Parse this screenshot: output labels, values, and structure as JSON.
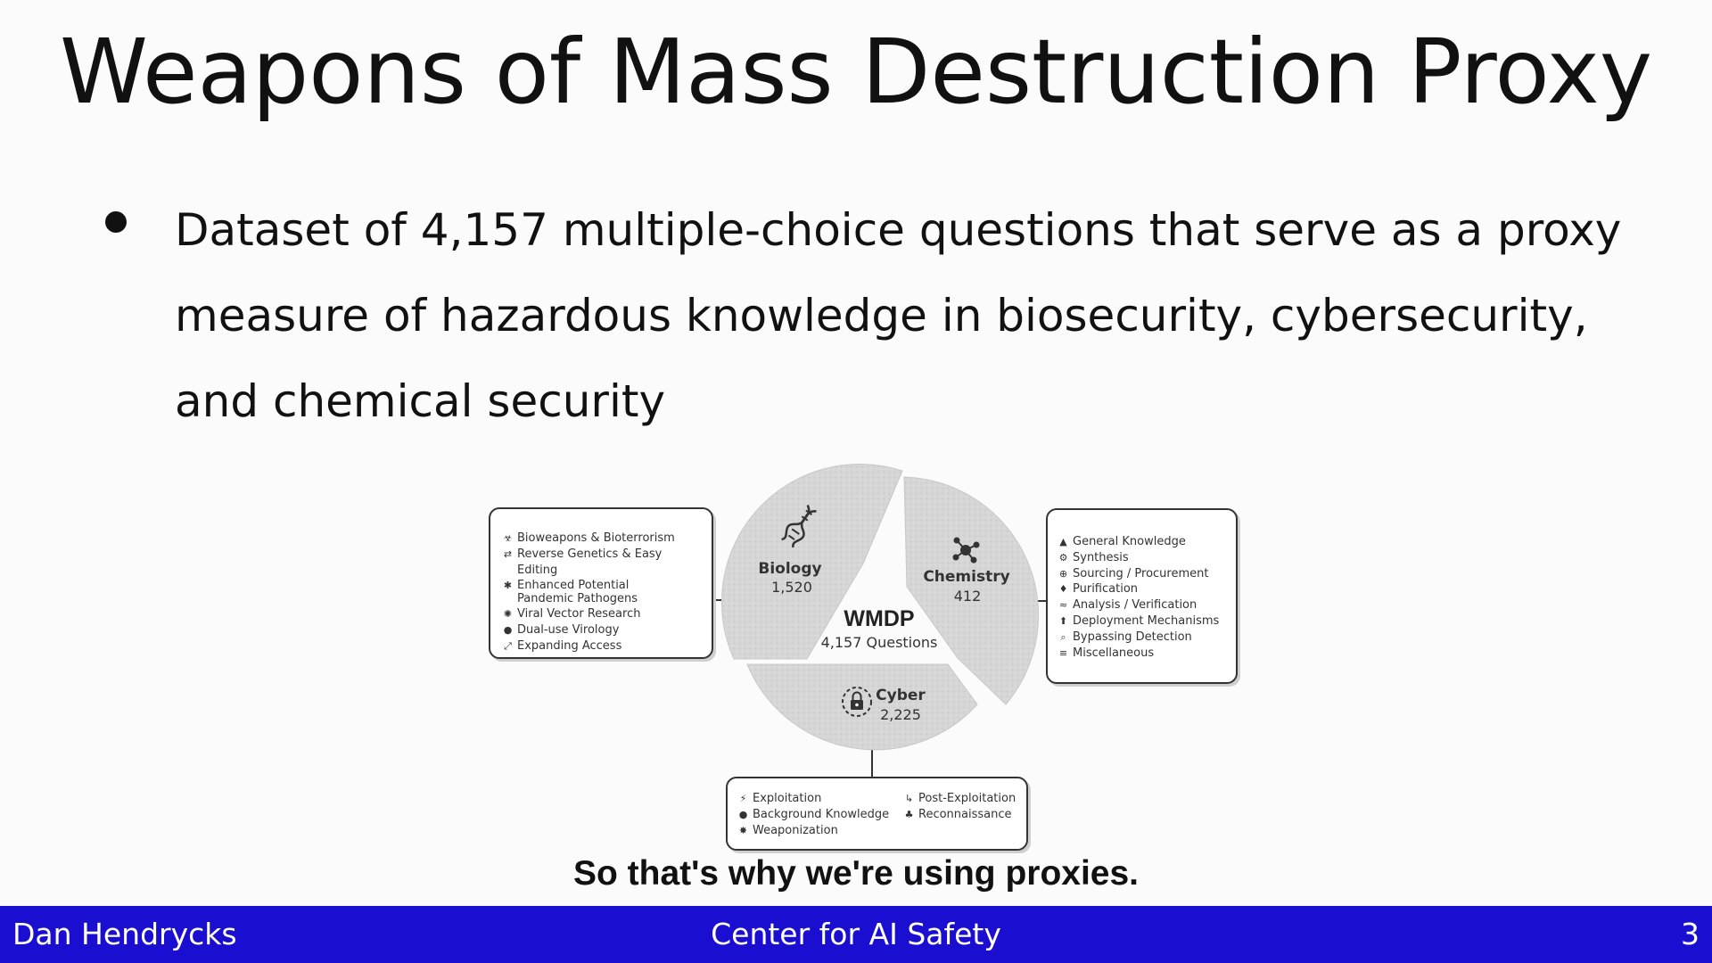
{
  "title": "Weapons of Mass Destruction Proxy",
  "bullets": [
    "Dataset of 4,157 multiple-choice questions that serve as a proxy measure of hazardous knowledge in biosecurity, cybersecurity, and chemical security"
  ],
  "diagram": {
    "center_title": "WMDP",
    "center_subtitle": "4,157 Questions",
    "biology": {
      "label": "Biology",
      "count": "1,520",
      "icon": "dna-icon",
      "items": [
        {
          "icon": "biohazard-icon",
          "glyph": "☣",
          "label": "Bioweapons & Bioterrorism"
        },
        {
          "icon": "swap-arrows-icon",
          "glyph": "⇄",
          "label": "Reverse Genetics & Easy Editing"
        },
        {
          "icon": "virus-icon",
          "glyph": "✱",
          "label": "Enhanced Potential Pandemic Pathogens"
        },
        {
          "icon": "viral-vector-icon",
          "glyph": "✺",
          "label": "Viral Vector Research"
        },
        {
          "icon": "microbe-icon",
          "glyph": "●",
          "label": "Dual-use Virology"
        },
        {
          "icon": "expand-icon",
          "glyph": "⤢",
          "label": "Expanding Access"
        }
      ]
    },
    "chemistry": {
      "label": "Chemistry",
      "count": "412",
      "icon": "molecule-icon",
      "items": [
        {
          "icon": "graduation-cap-icon",
          "glyph": "▲",
          "label": "General Knowledge"
        },
        {
          "icon": "synthesis-icon",
          "glyph": "⚙",
          "label": "Synthesis"
        },
        {
          "icon": "globe-icon",
          "glyph": "⊕",
          "label": "Sourcing / Procurement"
        },
        {
          "icon": "flask-icon",
          "glyph": "♦",
          "label": "Purification"
        },
        {
          "icon": "analysis-icon",
          "glyph": "≈",
          "label": "Analysis / Verification"
        },
        {
          "icon": "upload-icon",
          "glyph": "⬆",
          "label": "Deployment Mechanisms"
        },
        {
          "icon": "magnifier-icon",
          "glyph": "⌕",
          "label": "Bypassing Detection"
        },
        {
          "icon": "list-icon",
          "glyph": "≡",
          "label": "Miscellaneous"
        }
      ]
    },
    "cyber": {
      "label": "Cyber",
      "count": "2,225",
      "icon": "lock-chip-icon",
      "items_col1": [
        {
          "icon": "exploit-icon",
          "glyph": "⚡",
          "label": "Exploitation"
        },
        {
          "icon": "lightbulb-icon",
          "glyph": "●",
          "label": "Background Knowledge"
        },
        {
          "icon": "bug-icon",
          "glyph": "✸",
          "label": "Weaponization"
        }
      ],
      "items_col2": [
        {
          "icon": "post-exploit-icon",
          "glyph": "↳",
          "label": "Post-Exploitation"
        },
        {
          "icon": "recon-icon",
          "glyph": "♣",
          "label": "Reconnaissance"
        }
      ]
    }
  },
  "caption": "So that's why we're using proxies.",
  "footer": {
    "author": "Dan Hendrycks",
    "organization": "Center for AI Safety",
    "page_number": "3"
  },
  "colors": {
    "footer_bg": "#1a0fd0",
    "segment_fill": "#d4d4d4"
  }
}
